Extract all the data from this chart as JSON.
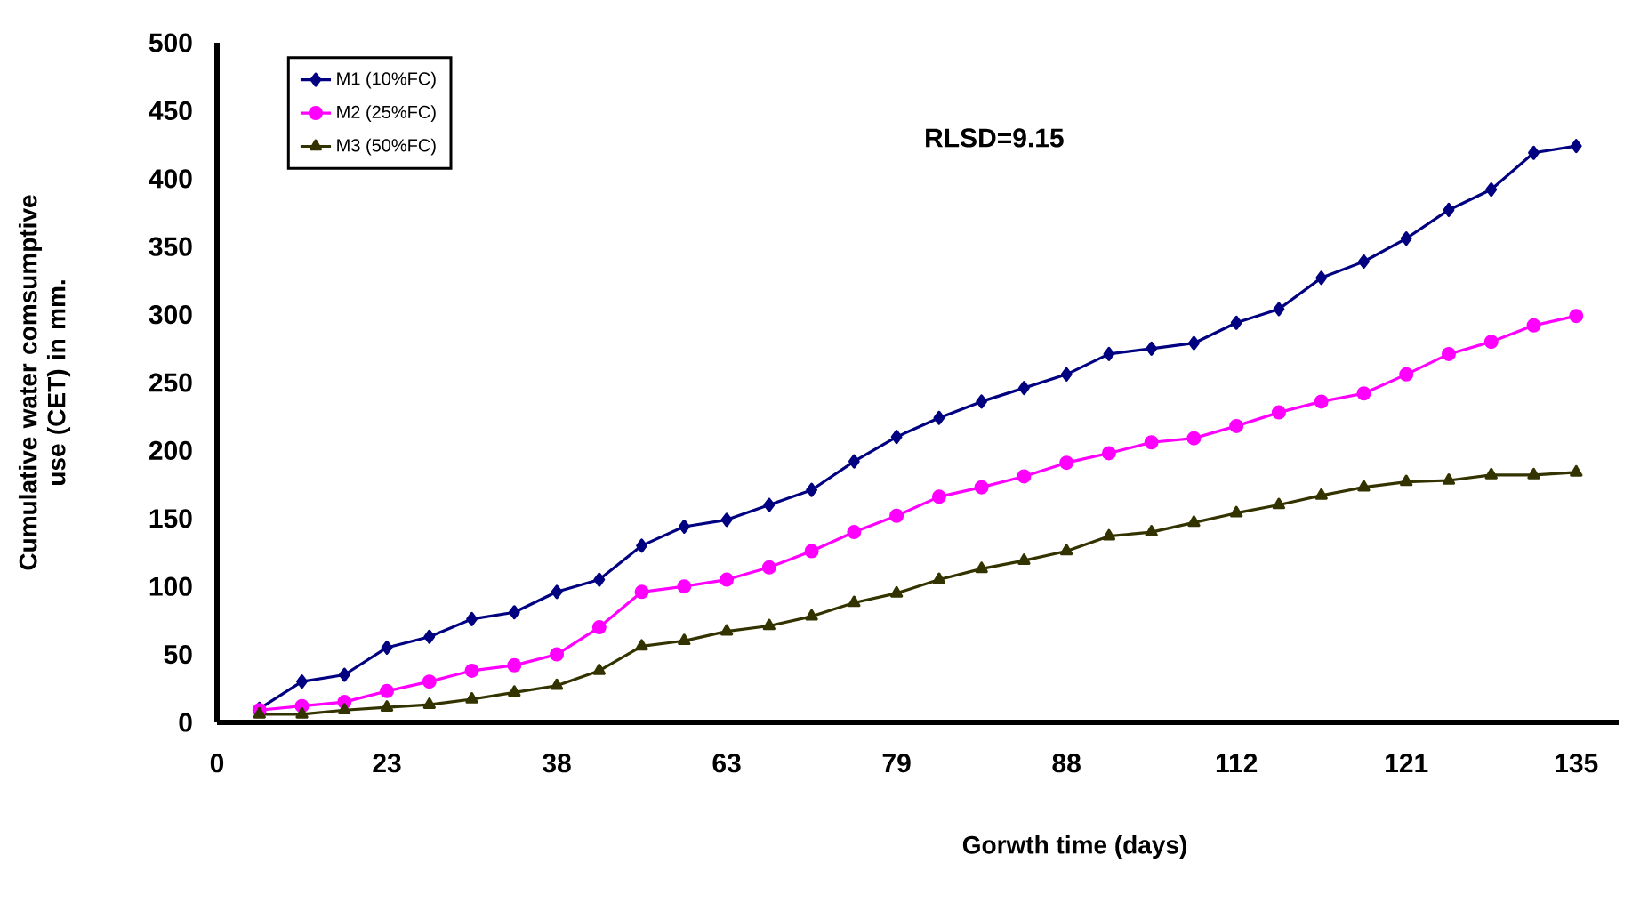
{
  "chart_data": {
    "type": "line",
    "xlabel": "Gorwth time (days)",
    "ylabel": "Cumulative water comsumptive use (CET) in mm.",
    "categories": [
      "0",
      null,
      null,
      null,
      "23",
      null,
      null,
      null,
      "38",
      null,
      null,
      null,
      "63",
      null,
      null,
      null,
      "79",
      null,
      null,
      null,
      "88",
      null,
      null,
      null,
      "112",
      null,
      null,
      null,
      "121",
      null,
      null,
      null,
      "135"
    ],
    "series": [
      {
        "name": "M1 (10%FC)",
        "color": "#000080",
        "marker": "diamond",
        "values": [
          null,
          10,
          30,
          35,
          55,
          63,
          76,
          81,
          96,
          105,
          130,
          144,
          149,
          160,
          171,
          192,
          210,
          224,
          236,
          246,
          256,
          271,
          275,
          279,
          294,
          304,
          327,
          339,
          356,
          377,
          392,
          419,
          424
        ]
      },
      {
        "name": "M2 (25%FC)",
        "color": "#ff00ff",
        "marker": "circle",
        "values": [
          null,
          9,
          12,
          15,
          23,
          30,
          38,
          42,
          50,
          70,
          96,
          100,
          105,
          114,
          126,
          140,
          152,
          166,
          173,
          181,
          191,
          198,
          206,
          209,
          218,
          228,
          236,
          242,
          256,
          271,
          280,
          292,
          299
        ]
      },
      {
        "name": "M3 (50%FC)",
        "color": "#333300",
        "marker": "triangle",
        "values": [
          null,
          6,
          6,
          9,
          11,
          13,
          17,
          22,
          27,
          38,
          56,
          60,
          67,
          71,
          78,
          88,
          95,
          105,
          113,
          119,
          126,
          137,
          140,
          147,
          154,
          160,
          167,
          173,
          177,
          178,
          182,
          182,
          184
        ]
      }
    ],
    "ylim": [
      0,
      500
    ],
    "yticks": [
      0,
      50,
      100,
      150,
      200,
      250,
      300,
      350,
      400,
      450,
      500
    ],
    "grid": false,
    "legend": "top left",
    "line_style": "solid",
    "annotations": [
      "RLSD=9.15"
    ]
  }
}
